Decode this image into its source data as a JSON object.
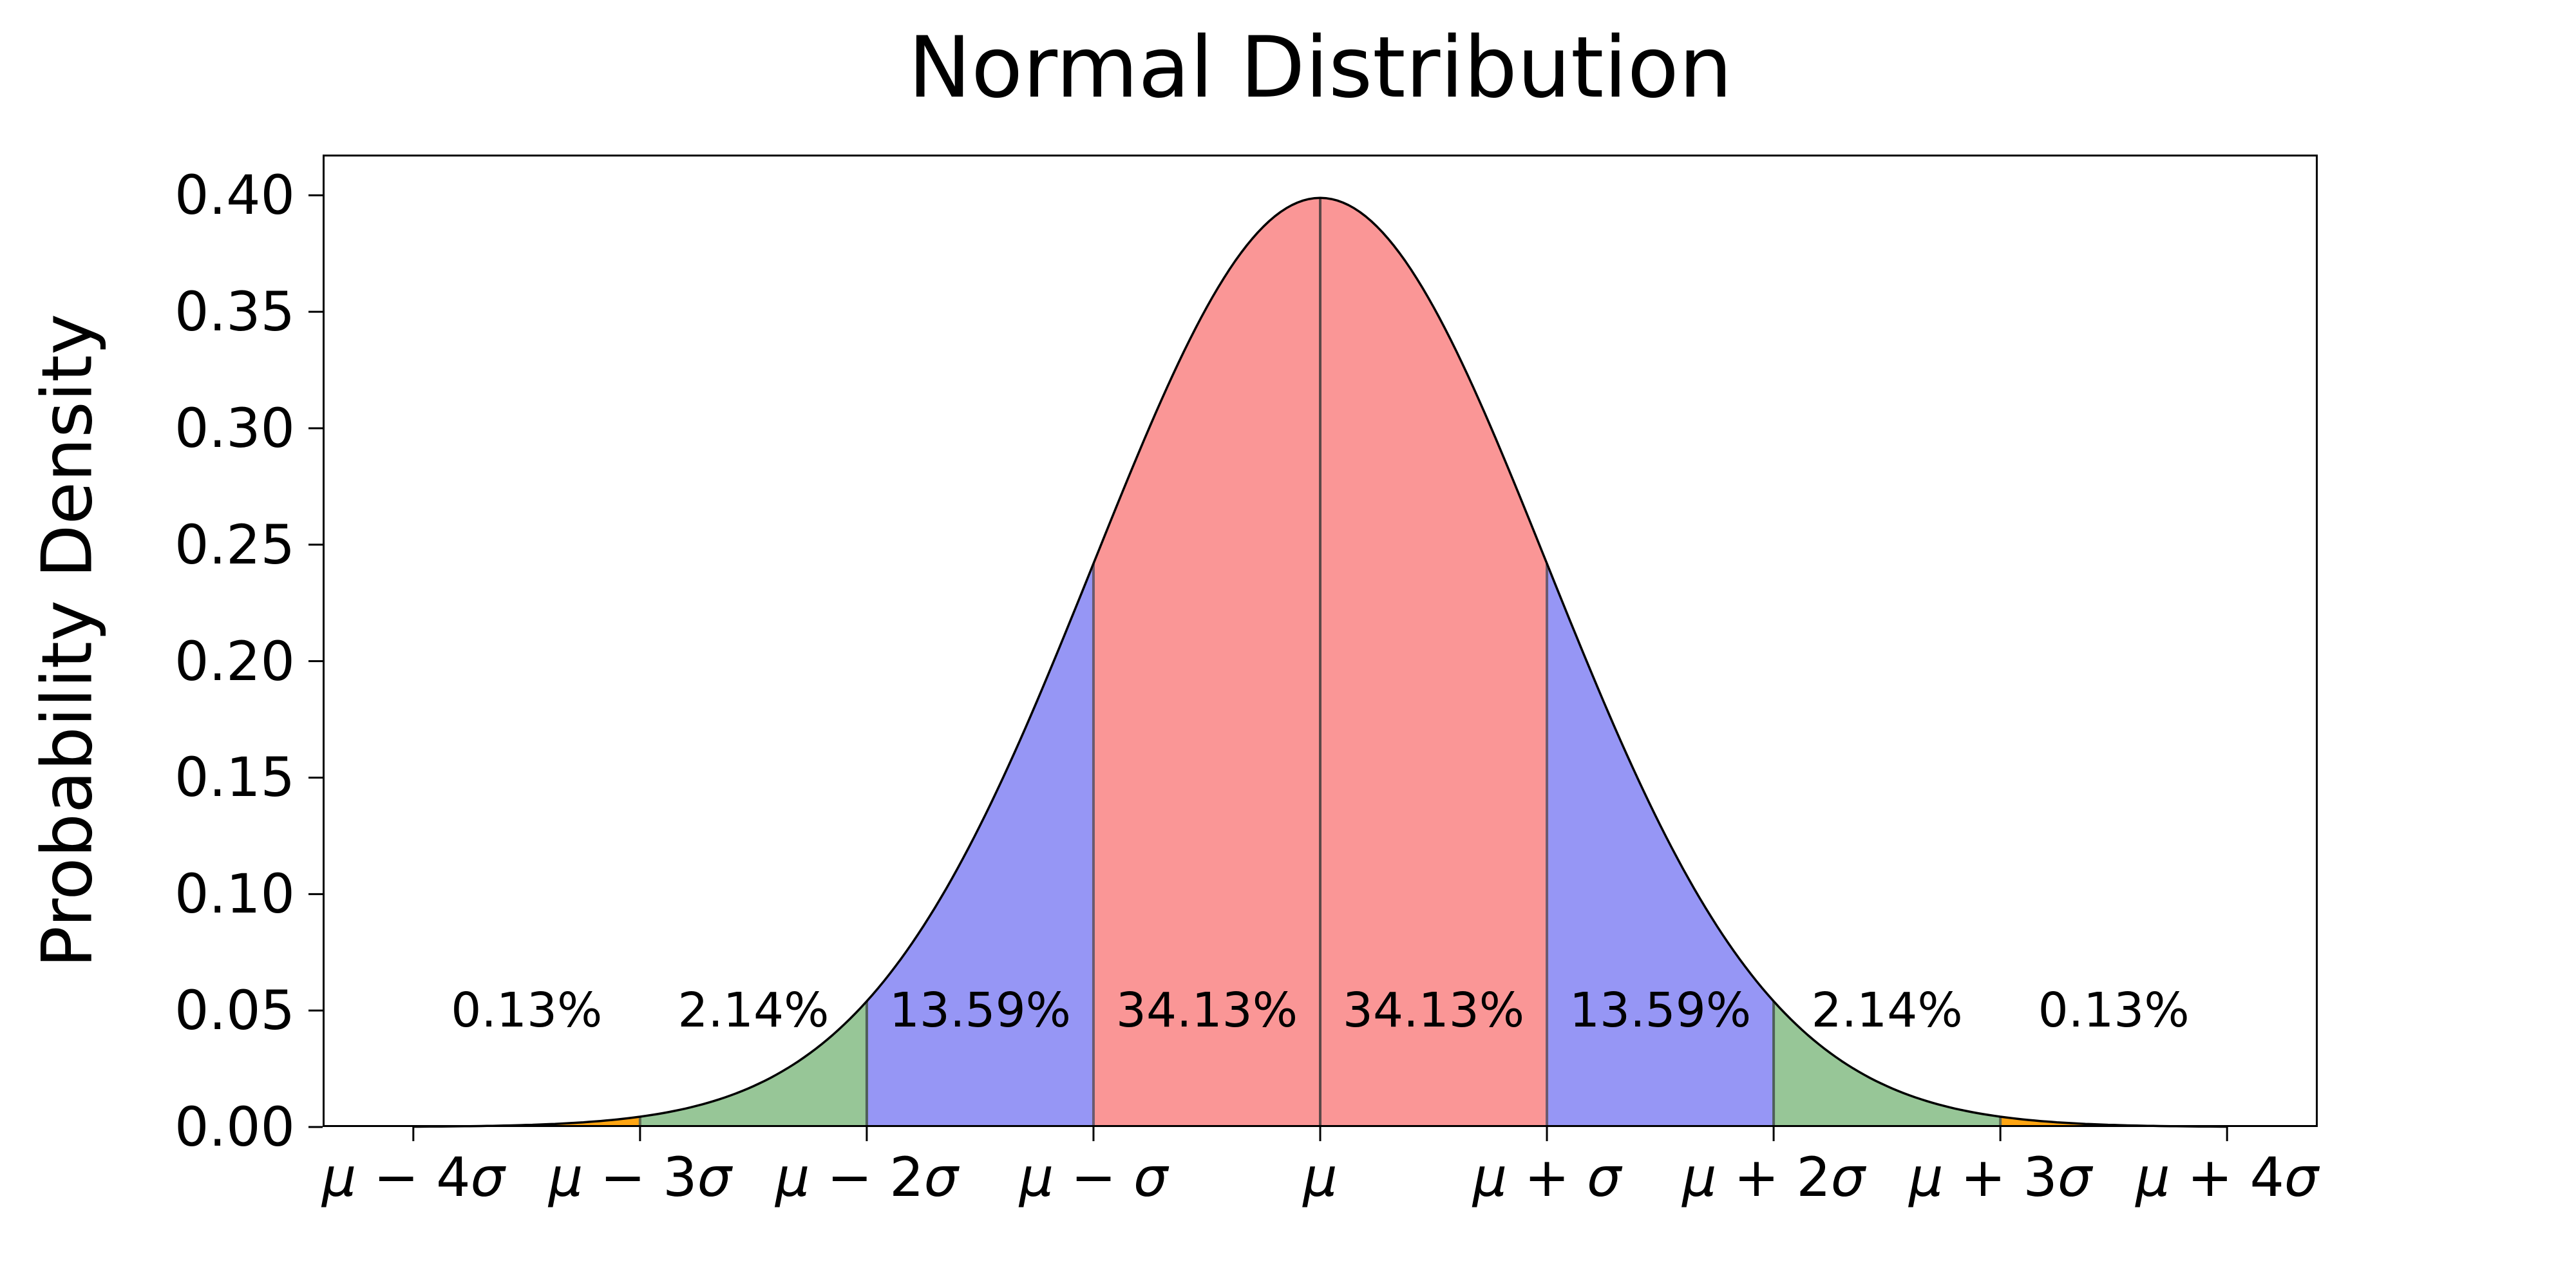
{
  "chart_data": {
    "type": "area",
    "title": "Normal Distribution",
    "xlabel": "",
    "ylabel": "Probability Density",
    "xlim": [
      -4.4,
      4.4
    ],
    "ylim": [
      0,
      0.4175
    ],
    "grid": false,
    "legend": false,
    "x_unit": "sigma_offsets_from_mu",
    "curve": {
      "name": "standard-normal-pdf",
      "peak": 0.3989,
      "domain": [
        -4,
        4
      ],
      "color": "#000000",
      "linewidth": 3.5
    },
    "xticks": [
      {
        "x": -4,
        "label": "μ − 4σ"
      },
      {
        "x": -3,
        "label": "μ − 3σ"
      },
      {
        "x": -2,
        "label": "μ − 2σ"
      },
      {
        "x": -1,
        "label": "μ − σ"
      },
      {
        "x": 0,
        "label": "μ"
      },
      {
        "x": 1,
        "label": "μ + σ"
      },
      {
        "x": 2,
        "label": "μ + 2σ"
      },
      {
        "x": 3,
        "label": "μ + 3σ"
      },
      {
        "x": 4,
        "label": "μ + 4σ"
      }
    ],
    "yticks": [
      {
        "y": 0.0,
        "label": "0.00"
      },
      {
        "y": 0.05,
        "label": "0.05"
      },
      {
        "y": 0.1,
        "label": "0.10"
      },
      {
        "y": 0.15,
        "label": "0.15"
      },
      {
        "y": 0.2,
        "label": "0.20"
      },
      {
        "y": 0.25,
        "label": "0.25"
      },
      {
        "y": 0.3,
        "label": "0.30"
      },
      {
        "y": 0.35,
        "label": "0.35"
      },
      {
        "y": 0.4,
        "label": "0.40"
      }
    ],
    "bands": [
      {
        "from": -4,
        "to": -3,
        "fill": "#ffa512",
        "percent": "0.13%",
        "label_x": -3.5
      },
      {
        "from": -3,
        "to": -2,
        "fill": "#97c697",
        "percent": "2.14%",
        "label_x": -2.5
      },
      {
        "from": -2,
        "to": -1,
        "fill": "#9696f5",
        "percent": "13.59%",
        "label_x": -1.5
      },
      {
        "from": -1,
        "to": 0,
        "fill": "#fa9696",
        "percent": "34.13%",
        "label_x": -0.5
      },
      {
        "from": 0,
        "to": 1,
        "fill": "#fa9696",
        "percent": "34.13%",
        "label_x": 0.5
      },
      {
        "from": 1,
        "to": 2,
        "fill": "#9696f5",
        "percent": "13.59%",
        "label_x": 1.5
      },
      {
        "from": 2,
        "to": 3,
        "fill": "#97c697",
        "percent": "2.14%",
        "label_x": 2.5
      },
      {
        "from": 3,
        "to": 4,
        "fill": "#ffa512",
        "percent": "0.13%",
        "label_x": 3.5
      }
    ],
    "band_label_y": 0.05,
    "dividers": [
      {
        "x": -3,
        "color": "#5f6a52"
      },
      {
        "x": -2,
        "color": "#4f5f58"
      },
      {
        "x": -1,
        "color": "#6a5a6e"
      },
      {
        "x": 1,
        "color": "#6a5a6e"
      },
      {
        "x": 2,
        "color": "#4f5f58"
      },
      {
        "x": 3,
        "color": "#5f6a52"
      }
    ],
    "mean_line": {
      "x": 0,
      "color": "#4a3f3f",
      "width": 4
    },
    "axis_color": "#000000",
    "tick_length": 22
  }
}
